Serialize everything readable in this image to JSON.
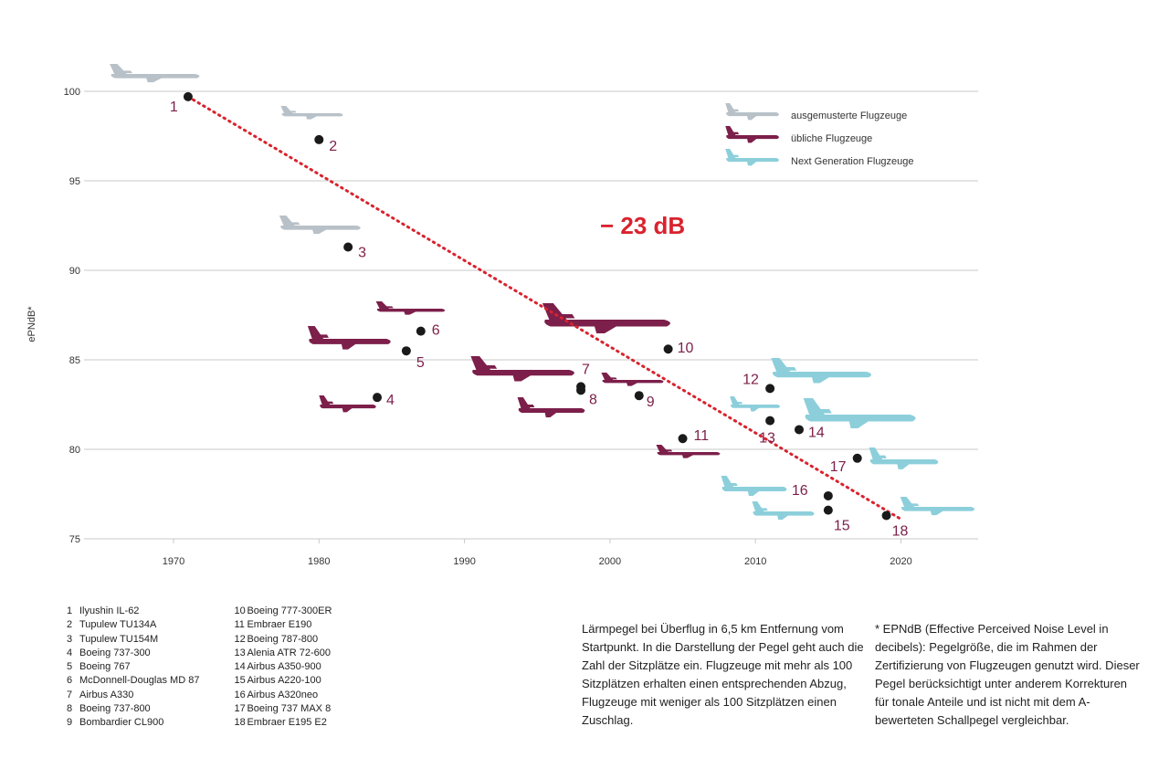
{
  "chart_data": {
    "type": "scatter",
    "ylabel": "ePNdB*",
    "xlim": [
      1964,
      2025
    ],
    "ylim": [
      75,
      100
    ],
    "x_ticks": [
      1970,
      1980,
      1990,
      2000,
      2010,
      2020
    ],
    "y_ticks": [
      75,
      80,
      85,
      90,
      95,
      100
    ],
    "grid": "horizontal",
    "points": [
      {
        "id": "1",
        "year": 1971,
        "value": 99.7,
        "category": "retired"
      },
      {
        "id": "2",
        "year": 1980,
        "value": 97.3,
        "category": "retired"
      },
      {
        "id": "3",
        "year": 1982,
        "value": 91.3,
        "category": "retired"
      },
      {
        "id": "4",
        "year": 1984,
        "value": 82.9,
        "category": "common"
      },
      {
        "id": "5",
        "year": 1986,
        "value": 85.5,
        "category": "common"
      },
      {
        "id": "6",
        "year": 1987,
        "value": 86.6,
        "category": "common"
      },
      {
        "id": "7",
        "year": 1998,
        "value": 83.5,
        "category": "common"
      },
      {
        "id": "8",
        "year": 1998,
        "value": 83.3,
        "category": "common"
      },
      {
        "id": "9",
        "year": 2002,
        "value": 83.0,
        "category": "common"
      },
      {
        "id": "10",
        "year": 2004,
        "value": 85.6,
        "category": "common"
      },
      {
        "id": "11",
        "year": 2005,
        "value": 80.6,
        "category": "common"
      },
      {
        "id": "12",
        "year": 2011,
        "value": 83.4,
        "category": "next"
      },
      {
        "id": "13",
        "year": 2011,
        "value": 81.6,
        "category": "next"
      },
      {
        "id": "14",
        "year": 2013,
        "value": 81.1,
        "category": "next"
      },
      {
        "id": "15",
        "year": 2015,
        "value": 76.6,
        "category": "next"
      },
      {
        "id": "16",
        "year": 2015,
        "value": 77.4,
        "category": "next"
      },
      {
        "id": "17",
        "year": 2017,
        "value": 79.5,
        "category": "next"
      },
      {
        "id": "18",
        "year": 2019,
        "value": 76.3,
        "category": "next"
      }
    ],
    "trend_line": {
      "from": [
        1971,
        99.7
      ],
      "to": [
        2020,
        76.1
      ],
      "color": "#d9232e",
      "style": "dotted"
    },
    "annotation": "− 23 dB",
    "legend": {
      "placement": "top-right",
      "entries": [
        {
          "label": "ausgemusterte Flugzeuge",
          "color": "#b8c1c8"
        },
        {
          "label": "übliche Flugzeuge",
          "color": "#7c1f4a"
        },
        {
          "label": "Next Generation Flugzeuge",
          "color": "#8ccfdb"
        }
      ]
    },
    "colors": {
      "retired": "#b8c1c8",
      "common": "#7c1f4a",
      "next": "#8ccfdb",
      "point": "#1a1a1a",
      "trend": "#d9232e"
    }
  },
  "aircraft_names": [
    {
      "num": "1",
      "name": "Ilyushin IL-62"
    },
    {
      "num": "2",
      "name": "Tupulew TU134A"
    },
    {
      "num": "3",
      "name": "Tupulew TU154M"
    },
    {
      "num": "4",
      "name": "Boeing 737-300"
    },
    {
      "num": "5",
      "name": "Boeing 767"
    },
    {
      "num": "6",
      "name": "McDonnell-Douglas MD 87"
    },
    {
      "num": "7",
      "name": "Airbus A330"
    },
    {
      "num": "8",
      "name": "Boeing 737-800"
    },
    {
      "num": "9",
      "name": "Bombardier CL900"
    },
    {
      "num": "10",
      "name": "Boeing 777-300ER"
    },
    {
      "num": "11",
      "name": "Embraer E190"
    },
    {
      "num": "12",
      "name": "Boeing 787-800"
    },
    {
      "num": "13",
      "name": "Alenia ATR 72-600"
    },
    {
      "num": "14",
      "name": "Airbus A350-900"
    },
    {
      "num": "15",
      "name": "Airbus A220-100"
    },
    {
      "num": "16",
      "name": "Airbus A320neo"
    },
    {
      "num": "17",
      "name": "Boeing 737 MAX 8"
    },
    {
      "num": "18",
      "name": "Embraer E195 E2"
    }
  ],
  "note_noise": "Lärmpegel bei Überflug in 6,5 km Entfernung vom Startpunkt. In die Darstellung der Pegel geht auch die Zahl der Sitzplätze ein. Flugzeuge mit mehr als 100 Sitzplätzen erhalten einen entsprechenden Abzug, Flugzeuge mit weniger als 100 Sitzplätzen einen Zuschlag.",
  "note_epndb": "* EPNdB (Effective Perceived Noise Level in decibels): Pegelgröße, die im Rahmen der Zertifizierung von Flugzeugen genutzt wird. Dieser Pegel berücksichtigt unter anderem Korrekturen für tonale Anteile und ist nicht mit dem A-bewerteten Schallpegel vergleichbar."
}
